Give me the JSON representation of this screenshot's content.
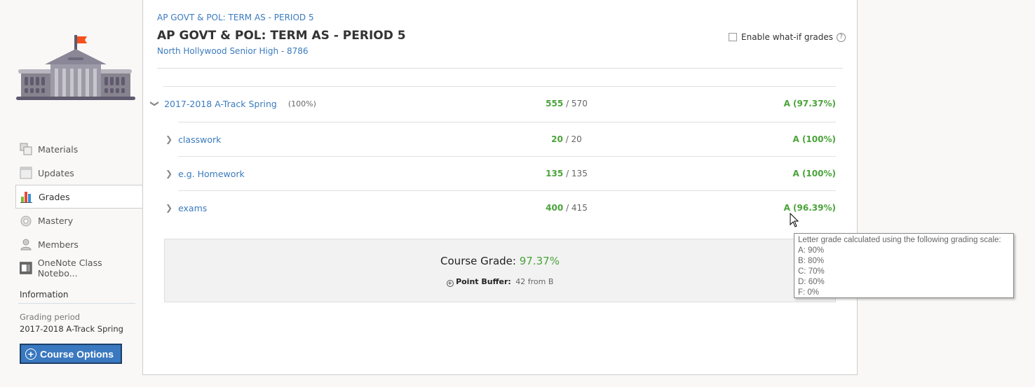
{
  "sidebar": {
    "nav": [
      {
        "label": "Materials",
        "icon": "materials-icon"
      },
      {
        "label": "Updates",
        "icon": "updates-icon"
      },
      {
        "label": "Grades",
        "icon": "grades-icon",
        "active": true
      },
      {
        "label": "Mastery",
        "icon": "mastery-icon"
      },
      {
        "label": "Members",
        "icon": "members-icon"
      },
      {
        "label": "OneNote Class Notebo...",
        "icon": "onenote-icon"
      }
    ],
    "info_heading": "Information",
    "grading_period_label": "Grading period",
    "grading_period_value": "2017-2018 A-Track Spring",
    "course_options": "Course Options"
  },
  "header": {
    "breadcrumb": "AP GOVT & POL: TERM AS - PERIOD 5",
    "title": "AP GOVT & POL: TERM AS - PERIOD 5",
    "school": "North Hollywood Senior High - 8786",
    "whatif_label": "Enable what-if grades",
    "whatif_checked": false
  },
  "period": {
    "name": "2017-2018 A-Track Spring",
    "weight": "(100%)",
    "earned": "555",
    "total": "/ 570",
    "grade": "A (97.37%)"
  },
  "categories": [
    {
      "name": "classwork",
      "earned": "20",
      "total": "/ 20",
      "grade": "A (100%)"
    },
    {
      "name": "e.g. Homework",
      "earned": "135",
      "total": "/ 135",
      "grade": "A (100%)"
    },
    {
      "name": "exams",
      "earned": "400",
      "total": "/ 415",
      "grade": "A (96.39%)"
    }
  ],
  "summary": {
    "course_grade_label": "Course Grade:",
    "course_grade_value": "97.37%",
    "buffer_label": "Point Buffer:",
    "buffer_value": "42 from B"
  },
  "tooltip": {
    "title": "Letter grade calculated using the following grading scale:",
    "scale": [
      "A: 90%",
      "B: 80%",
      "C: 70%",
      "D: 60%",
      "F: 0%"
    ]
  },
  "colors": {
    "accent": "#3a7bbf",
    "grade_green": "#4aa33a",
    "button": "#3a78bf"
  }
}
